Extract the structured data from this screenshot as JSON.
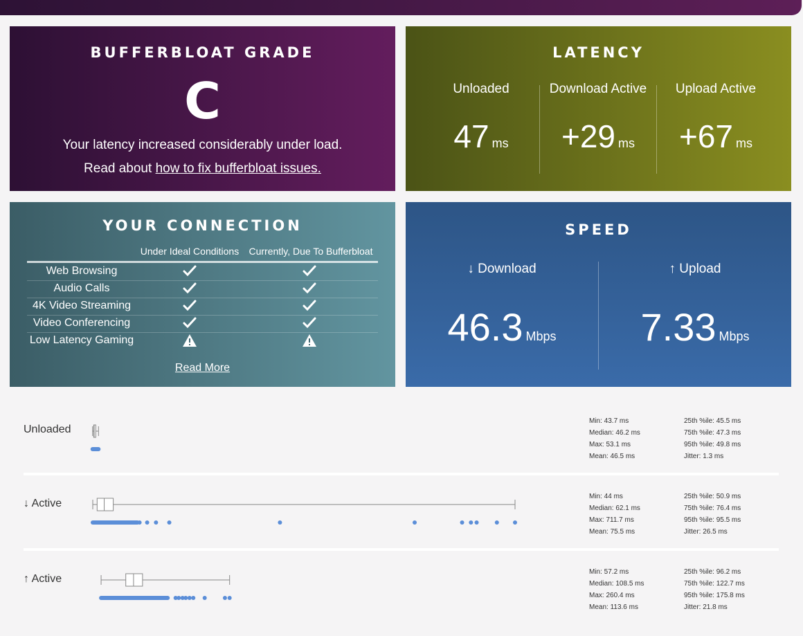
{
  "grade": {
    "title": "BUFFERBLOAT GRADE",
    "letter": "C",
    "description": "Your latency increased considerably under load.",
    "read_prefix": "Read about",
    "read_link": "how to fix bufferbloat issues."
  },
  "latency": {
    "title": "LATENCY",
    "columns": [
      {
        "label": "Unloaded",
        "value": "47",
        "unit": "ms"
      },
      {
        "label": "Download Active",
        "value": "+29",
        "unit": "ms"
      },
      {
        "label": "Upload Active",
        "value": "+67",
        "unit": "ms"
      }
    ]
  },
  "connection": {
    "title": "YOUR CONNECTION",
    "col_ideal": "Under Ideal Conditions",
    "col_current": "Currently, Due To Bufferbloat",
    "rows": [
      {
        "label": "Web Browsing",
        "ideal": "check",
        "current": "check"
      },
      {
        "label": "Audio Calls",
        "ideal": "check",
        "current": "check"
      },
      {
        "label": "4K Video Streaming",
        "ideal": "check",
        "current": "check"
      },
      {
        "label": "Video Conferencing",
        "ideal": "check",
        "current": "check"
      },
      {
        "label": "Low Latency Gaming",
        "ideal": "warning",
        "current": "warning"
      }
    ],
    "read_more": "Read More"
  },
  "speed": {
    "title": "SPEED",
    "download_label": "↓ Download",
    "download_value": "46.3",
    "download_unit": "Mbps",
    "upload_label": "↑ Upload",
    "upload_value": "7.33",
    "upload_unit": "Mbps"
  },
  "distributions": [
    {
      "label": "Unloaded",
      "stats_left": [
        "Min: 43.7 ms",
        "Median: 46.2 ms",
        "Max: 53.1 ms",
        "Mean: 46.5 ms"
      ],
      "stats_right": [
        "25th %ile: 45.5 ms",
        "75th %ile: 47.3 ms",
        "95th %ile: 49.8 ms",
        "Jitter: 1.3 ms"
      ],
      "box": {
        "min": 43.7,
        "q1": 45.5,
        "median": 46.2,
        "q3": 47.3,
        "max": 53.1
      },
      "outliers": []
    },
    {
      "label": "↓ Active",
      "stats_left": [
        "Min: 44 ms",
        "Median: 62.1 ms",
        "Max: 711.7 ms",
        "Mean: 75.5 ms"
      ],
      "stats_right": [
        "25th %ile: 50.9 ms",
        "75th %ile: 76.4 ms",
        "95th %ile: 95.5 ms",
        "Jitter: 26.5 ms"
      ],
      "box": {
        "min": 44,
        "q1": 50.9,
        "median": 62.1,
        "q3": 76.4,
        "max": 711.7
      },
      "outliers": [
        118,
        130,
        144,
        165,
        340,
        553,
        628,
        642,
        651,
        683,
        711.7
      ]
    },
    {
      "label": "↑ Active",
      "stats_left": [
        "Min: 57.2 ms",
        "Median: 108.5 ms",
        "Max: 260.4 ms",
        "Mean: 113.6 ms"
      ],
      "stats_right": [
        "25th %ile: 96.2 ms",
        "75th %ile: 122.7 ms",
        "95th %ile: 175.8 ms",
        "Jitter: 21.8 ms"
      ],
      "box": {
        "min": 57.2,
        "q1": 96.2,
        "median": 108.5,
        "q3": 122.7,
        "max": 260.4
      },
      "outliers": [
        175,
        180,
        186,
        191,
        197,
        203,
        221,
        253,
        260.4
      ]
    }
  ],
  "colors": {
    "dots": "#5b8ed8",
    "box_stroke": "#888888"
  }
}
